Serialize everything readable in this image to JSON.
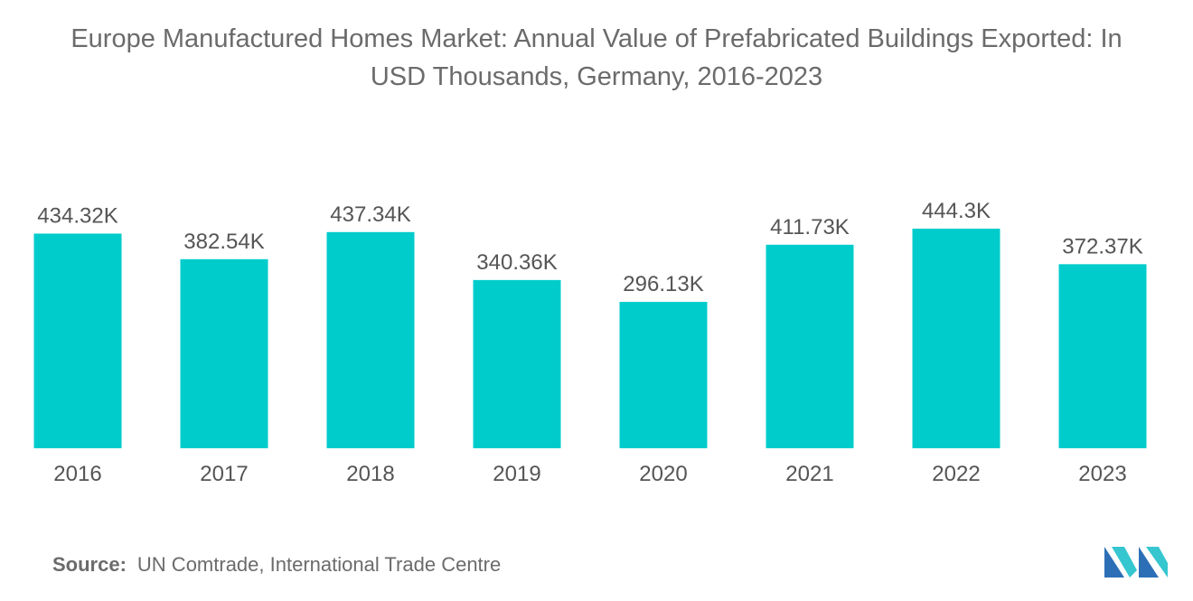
{
  "title_lines": [
    "Europe Manufactured Homes Market: Annual Value of Prefabricated Buildings Exported: In",
    "USD Thousands, Germany, 2016-2023"
  ],
  "chart_data": {
    "type": "bar",
    "title": "Europe Manufactured Homes Market: Annual Value of Prefabricated Buildings Exported: In USD Thousands, Germany, 2016-2023",
    "categories": [
      "2016",
      "2017",
      "2018",
      "2019",
      "2020",
      "2021",
      "2022",
      "2023"
    ],
    "values": [
      434.32,
      382.54,
      437.34,
      340.36,
      296.13,
      411.73,
      444.3,
      372.37
    ],
    "value_labels": [
      "434.32K",
      "382.54K",
      "437.34K",
      "340.36K",
      "296.13K",
      "411.73K",
      "444.3K",
      "372.37K"
    ],
    "xlabel": "",
    "ylabel": "",
    "ylim": [
      0,
      444.3
    ],
    "grid": false,
    "legend": "none",
    "bar_color": "#00cccc"
  },
  "source": {
    "label": "Source:",
    "text": "UN Comtrade, International Trade Centre"
  },
  "logo": {
    "icon": "mordor-intelligence-logo-icon",
    "colors": [
      "#2c6fb7",
      "#35c6cf"
    ]
  }
}
